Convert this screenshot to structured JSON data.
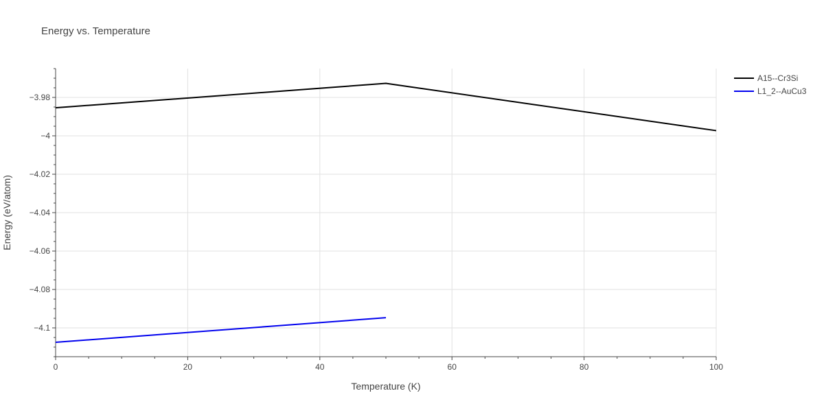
{
  "chart_data": {
    "type": "line",
    "title": "Energy vs. Temperature",
    "xlabel": "Temperature (K)",
    "ylabel": "Energy (eV/atom)",
    "xlim": [
      0,
      100
    ],
    "ylim": [
      -4.115,
      -3.965
    ],
    "x_ticks": [
      0,
      20,
      40,
      60,
      80,
      100
    ],
    "x_tick_labels": [
      "0",
      "20",
      "40",
      "60",
      "80",
      "100"
    ],
    "y_ticks": [
      -3.98,
      -4.0,
      -4.02,
      -4.04,
      -4.06,
      -4.08,
      -4.1
    ],
    "y_tick_labels": [
      "−3.98",
      "−4",
      "−4.02",
      "−4.04",
      "−4.06",
      "−4.08",
      "−4.1"
    ],
    "grid": true,
    "legend_position": "top-right",
    "series": [
      {
        "name": "A15--Cr3Si",
        "color": "#000000",
        "x": [
          0,
          50,
          100
        ],
        "y": [
          -3.9854,
          -3.9727,
          -3.9973
        ]
      },
      {
        "name": "L1_2--AuCu3",
        "color": "#0000ee",
        "x": [
          0,
          50
        ],
        "y": [
          -4.1075,
          -4.0947
        ]
      }
    ]
  }
}
